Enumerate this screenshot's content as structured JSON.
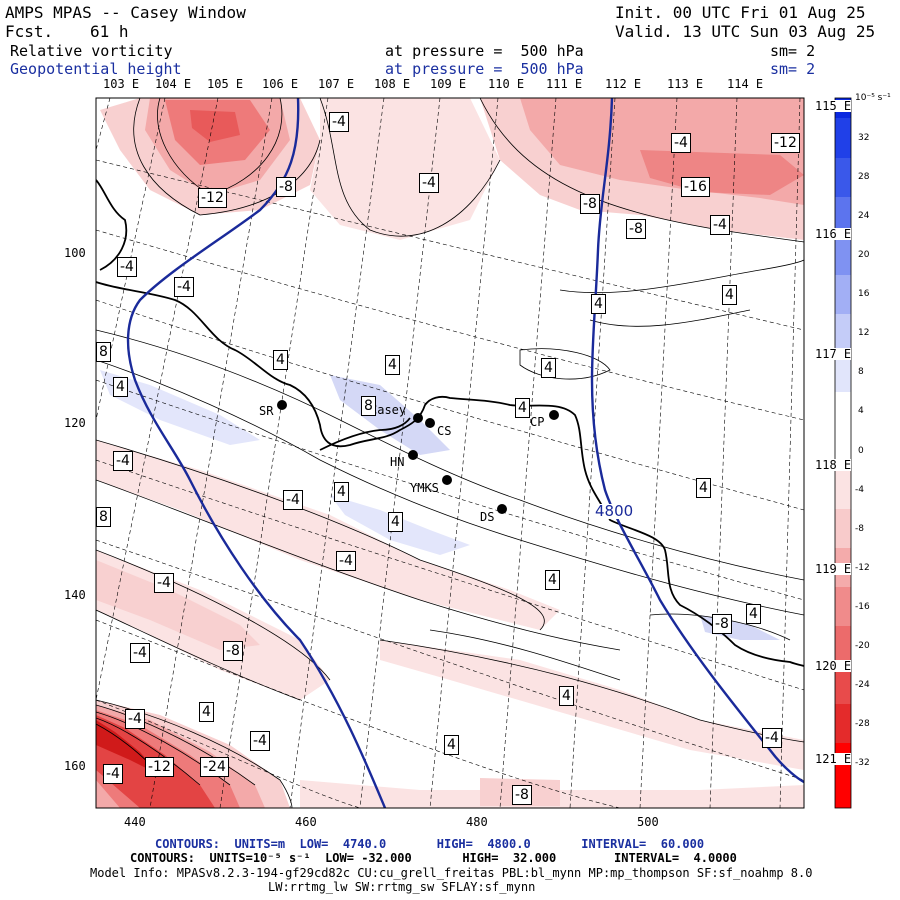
{
  "header": {
    "model": "AMPS MPAS -- Casey Window",
    "fcst_label": "Fcst.",
    "fcst_value": "61 h",
    "init": "Init. 00 UTC Fri 01 Aug 25",
    "valid": "Valid. 13 UTC Sun 03 Aug 25",
    "field1_name": "Relative vorticity",
    "field1_level": "at pressure =  500 hPa",
    "field1_sm": "sm= 2",
    "field2_name": "Geopotential height",
    "field2_level": "at pressure =  500 hPa",
    "field2_sm": "sm= 2"
  },
  "colors": {
    "height_contour": "#1a2a9a",
    "coast": "#000000",
    "text_navy": "#1a2fa0"
  },
  "longitude_labels_top": [
    "103 E",
    "104 E",
    "105 E",
    "106 E",
    "107 E",
    "108 E",
    "109 E",
    "110 E",
    "111 E",
    "112 E",
    "113 E",
    "114 E"
  ],
  "longitude_labels_right": [
    "115 E",
    "116 E",
    "117 E",
    "118 E",
    "119 E",
    "120 E",
    "121 E"
  ],
  "y_axis_ticks": [
    "100",
    "120",
    "140",
    "160"
  ],
  "x_axis_ticks": [
    "440",
    "460",
    "480",
    "500"
  ],
  "colorbar": {
    "unit_label": "10⁻⁵ s⁻¹",
    "tick_labels": [
      "32",
      "28",
      "24",
      "20",
      "16",
      "12",
      "8",
      "4",
      "0",
      "-4",
      "-8",
      "-12",
      "-16",
      "-20",
      "-24",
      "-28",
      "-32"
    ]
  },
  "stations": [
    {
      "name": "SR"
    },
    {
      "name": "Casey"
    },
    {
      "name": "CS"
    },
    {
      "name": "CP"
    },
    {
      "name": "HN"
    },
    {
      "name": "YMKS"
    },
    {
      "name": "DS"
    }
  ],
  "contour_labels": [
    "-4",
    "-12",
    "-8",
    "-4",
    "-8",
    "-4",
    "-16",
    "-12",
    "-8",
    "-4",
    "-4",
    "-4",
    "4",
    "4",
    "4",
    "4",
    "8",
    "8",
    "4",
    "4",
    "4",
    "4",
    "-4",
    "-4",
    "4",
    "4",
    "8",
    "-4",
    "4",
    "-4",
    "-4",
    "-8",
    "-8",
    "4",
    "4",
    "4",
    "-4",
    "4",
    "-4",
    "-4",
    "-4",
    "-12",
    "-24",
    "-8"
  ],
  "height_contour_label": "4800",
  "footer": {
    "line1": "CONTOURS:  UNITS=m  LOW=  4740.0       HIGH=  4800.0       INTERVAL=  60.000",
    "line2": "CONTOURS:  UNITS=10⁻⁵ s⁻¹  LOW= -32.000       HIGH=  32.000        INTERVAL=  4.0000",
    "line3": "Model Info: MPASv8.2.3-194-gf29cd82c CU:cu_grell_freitas PBL:bl_mynn MP:mp_thompson SF:sf_noahmp 8.0",
    "line4": "LW:rrtmg_lw SW:rrtmg_sw SFLAY:sf_mynn"
  }
}
